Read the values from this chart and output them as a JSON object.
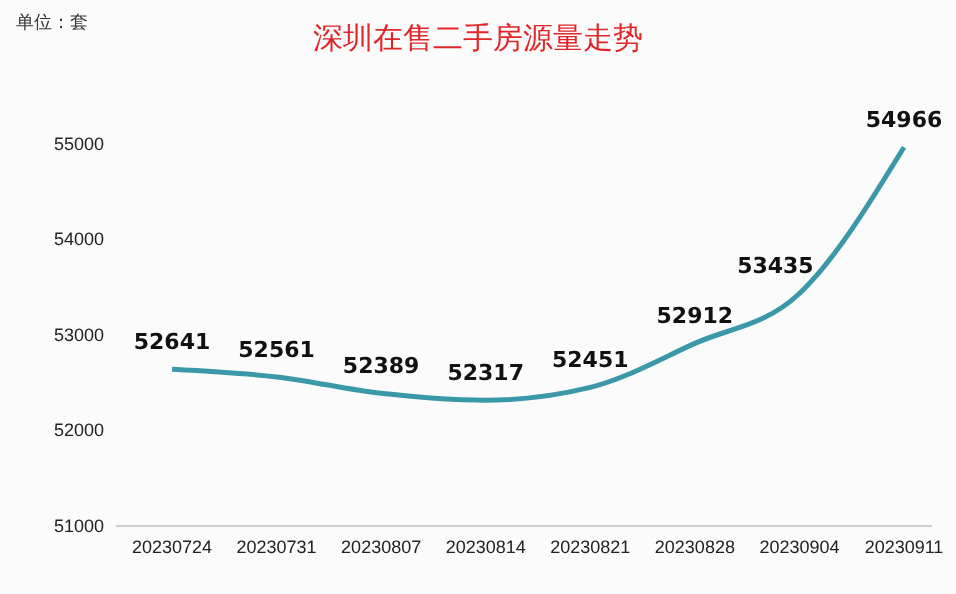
{
  "chart_data": {
    "type": "line",
    "title": "深圳在售二手房源量走势",
    "annotations": [
      "单位：套"
    ],
    "categories": [
      "20230724",
      "20230731",
      "20230807",
      "20230814",
      "20230821",
      "20230828",
      "20230904",
      "20230911"
    ],
    "series": [
      {
        "color": "#3a98a8",
        "values": [
          52641,
          52561,
          52389,
          52317,
          52451,
          52912,
          53435,
          54966
        ]
      }
    ],
    "ylim": [
      51000,
      55000
    ],
    "yticks": [
      51000,
      52000,
      53000,
      54000,
      55000
    ],
    "grid": false,
    "data_labels": true,
    "marker": "none",
    "line_style": "solid"
  }
}
